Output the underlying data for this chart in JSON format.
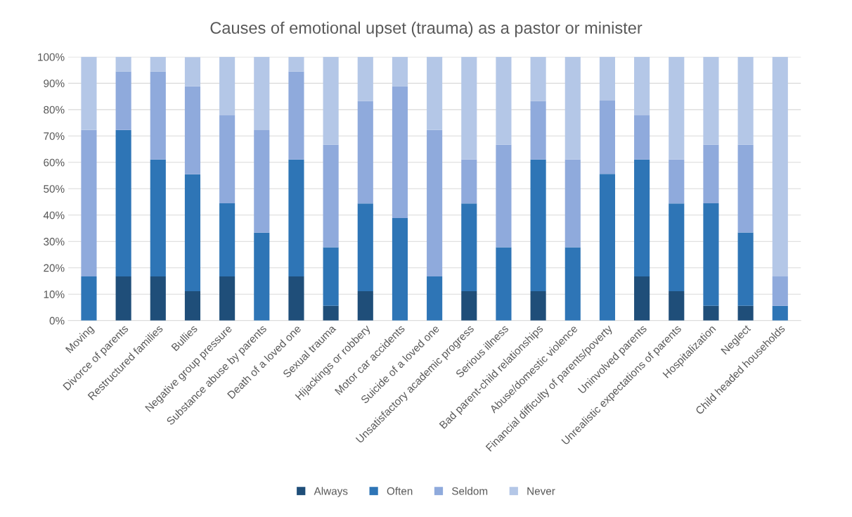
{
  "chart_data": {
    "type": "bar",
    "stacked": true,
    "title": "Causes of emotional upset (trauma) as a pastor or minister",
    "categories": [
      "Moving",
      "Divorce of parents",
      "Restructured families",
      "Bullies",
      "Negative group pressure",
      "Substance abuse by parents",
      "Death of a loved one",
      "Sexual trauma",
      "Hijackings or robbery",
      "Motor car accidents",
      "Suicide of a loved one",
      "Unsatisfactory academic progress",
      "Serious illness",
      "Bad parent-child relationships",
      "Abuse/domestic violence",
      "Financial difficulty of parents/poverty",
      "Uninvolved parents",
      "Unrealistic expectations of parents",
      "Hospitalization",
      "Neglect",
      "Child headed households"
    ],
    "series": [
      {
        "name": "Always",
        "color": "#1f4e79",
        "values": [
          0,
          16.7,
          16.7,
          11.1,
          16.7,
          0,
          16.7,
          5.6,
          11.1,
          0,
          0,
          11.1,
          0,
          11.1,
          0,
          0,
          16.7,
          11.1,
          5.6,
          5.6,
          0
        ]
      },
      {
        "name": "Often",
        "color": "#2e75b6",
        "values": [
          16.7,
          55.6,
          44.4,
          44.4,
          27.8,
          33.3,
          44.4,
          22.2,
          33.3,
          38.9,
          16.7,
          33.3,
          27.8,
          50,
          27.8,
          55.6,
          44.4,
          33.3,
          38.9,
          27.8,
          5.6
        ]
      },
      {
        "name": "Seldom",
        "color": "#8faadc",
        "values": [
          55.6,
          22.2,
          33.3,
          33.3,
          33.3,
          38.9,
          33.3,
          38.9,
          38.9,
          50,
          55.6,
          16.7,
          38.9,
          22.2,
          33.3,
          27.8,
          16.7,
          16.7,
          22.2,
          33.3,
          11.1
        ]
      },
      {
        "name": "Never",
        "color": "#b4c7e7",
        "values": [
          27.8,
          5.6,
          5.6,
          11.1,
          22.2,
          27.8,
          5.6,
          33.3,
          16.7,
          11.1,
          27.8,
          38.9,
          33.3,
          16.7,
          38.9,
          16.7,
          22.2,
          38.9,
          33.3,
          33.3,
          83.3
        ]
      }
    ],
    "ylim": [
      0,
      100
    ],
    "yticks": [
      {
        "value": 0,
        "label": "0%"
      },
      {
        "value": 10,
        "label": "10%"
      },
      {
        "value": 20,
        "label": "20%"
      },
      {
        "value": 30,
        "label": "30%"
      },
      {
        "value": 40,
        "label": "40%"
      },
      {
        "value": 50,
        "label": "50%"
      },
      {
        "value": 60,
        "label": "60%"
      },
      {
        "value": 70,
        "label": "70%"
      },
      {
        "value": 80,
        "label": "80%"
      },
      {
        "value": 90,
        "label": "90%"
      },
      {
        "value": 100,
        "label": "100%"
      }
    ],
    "grid": "y",
    "legend": "bottom"
  }
}
